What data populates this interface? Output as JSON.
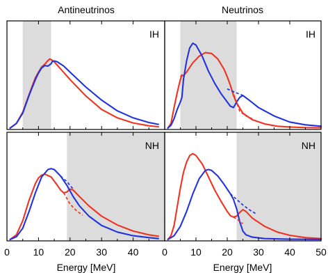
{
  "colors": {
    "red": "#ee3322",
    "blue": "#2233dd",
    "shade": "#dcdcdc"
  },
  "columns": [
    {
      "title": "Antineutrinos"
    },
    {
      "title": "Neutrinos"
    }
  ],
  "xlabel": "Energy [MeV]",
  "chart_data": [
    {
      "type": "line",
      "column": "Antineutrinos",
      "tag": "IH",
      "xlim": [
        0,
        50
      ],
      "shaded": [
        5,
        14
      ],
      "series": [
        {
          "color": "red",
          "points": [
            [
              1,
              0.0
            ],
            [
              3,
              0.05
            ],
            [
              5,
              0.17
            ],
            [
              7,
              0.36
            ],
            [
              9,
              0.54
            ],
            [
              10,
              0.6
            ],
            [
              11,
              0.655
            ],
            [
              11.5,
              0.67
            ],
            [
              12,
              0.685
            ],
            [
              12.5,
              0.705
            ],
            [
              13,
              0.725
            ],
            [
              13.6,
              0.74
            ],
            [
              14,
              0.735
            ],
            [
              15,
              0.71
            ],
            [
              17,
              0.635
            ],
            [
              20,
              0.52
            ],
            [
              25,
              0.345
            ],
            [
              30,
              0.2
            ],
            [
              35,
              0.11
            ],
            [
              40,
              0.055
            ],
            [
              45,
              0.025
            ],
            [
              48,
              0.015
            ]
          ]
        },
        {
          "color": "blue",
          "points": [
            [
              1,
              0.0
            ],
            [
              3,
              0.05
            ],
            [
              5,
              0.16
            ],
            [
              7,
              0.35
            ],
            [
              9,
              0.52
            ],
            [
              10,
              0.59
            ],
            [
              11,
              0.645
            ],
            [
              12,
              0.67
            ],
            [
              13,
              0.665
            ],
            [
              14,
              0.69
            ],
            [
              14.4,
              0.715
            ],
            [
              15,
              0.72
            ],
            [
              16,
              0.71
            ],
            [
              18,
              0.665
            ],
            [
              20,
              0.6
            ],
            [
              25,
              0.44
            ],
            [
              30,
              0.3
            ],
            [
              35,
              0.185
            ],
            [
              40,
              0.11
            ],
            [
              45,
              0.06
            ],
            [
              48,
              0.04
            ]
          ]
        }
      ],
      "dashed": [
        {
          "color": "red",
          "points": [
            [
              12,
              0.685
            ],
            [
              13.6,
              0.745
            ]
          ]
        }
      ]
    },
    {
      "type": "line",
      "column": "Neutrinos",
      "tag": "IH",
      "xlim": [
        0,
        50
      ],
      "shaded": [
        5,
        23
      ],
      "series": [
        {
          "color": "red",
          "points": [
            [
              1,
              0.0
            ],
            [
              2,
              0.05
            ],
            [
              3,
              0.22
            ],
            [
              4,
              0.38
            ],
            [
              5,
              0.52
            ],
            [
              5.5,
              0.57
            ],
            [
              6,
              0.56
            ],
            [
              7,
              0.6
            ],
            [
              9,
              0.7
            ],
            [
              11,
              0.77
            ],
            [
              13,
              0.81
            ],
            [
              15,
              0.8
            ],
            [
              17,
              0.74
            ],
            [
              19,
              0.63
            ],
            [
              20,
              0.55
            ],
            [
              21,
              0.46
            ],
            [
              22,
              0.35
            ],
            [
              23,
              0.27
            ],
            [
              25,
              0.16
            ],
            [
              28,
              0.09
            ],
            [
              32,
              0.045
            ],
            [
              36,
              0.02
            ],
            [
              40,
              0.012
            ],
            [
              45,
              0.005
            ],
            [
              50,
              0.003
            ]
          ]
        },
        {
          "color": "blue",
          "points": [
            [
              1,
              0.0
            ],
            [
              2,
              0.03
            ],
            [
              3,
              0.1
            ],
            [
              4,
              0.2
            ],
            [
              5,
              0.28
            ],
            [
              5.5,
              0.33
            ],
            [
              6,
              0.52
            ],
            [
              7,
              0.72
            ],
            [
              8,
              0.86
            ],
            [
              9,
              0.91
            ],
            [
              10,
              0.89
            ],
            [
              12,
              0.77
            ],
            [
              14,
              0.61
            ],
            [
              16,
              0.48
            ],
            [
              18,
              0.37
            ],
            [
              20,
              0.28
            ],
            [
              21,
              0.235
            ],
            [
              22,
              0.22
            ],
            [
              23,
              0.28
            ],
            [
              24,
              0.33
            ],
            [
              25,
              0.35
            ],
            [
              27,
              0.3
            ],
            [
              30,
              0.22
            ],
            [
              35,
              0.13
            ],
            [
              40,
              0.065
            ],
            [
              45,
              0.035
            ],
            [
              50,
              0.02
            ]
          ]
        }
      ],
      "dashed": [
        {
          "color": "red",
          "points": [
            [
              5,
              0.55
            ],
            [
              5.5,
              0.57
            ]
          ]
        },
        {
          "color": "red",
          "points": [
            [
              20,
              0.55
            ],
            [
              22,
              0.37
            ],
            [
              24,
              0.18
            ],
            [
              26,
              0.13
            ],
            [
              28,
              0.1
            ]
          ]
        },
        {
          "color": "blue",
          "points": [
            [
              20,
              0.42
            ],
            [
              22,
              0.39
            ],
            [
              25,
              0.35
            ]
          ]
        }
      ]
    },
    {
      "type": "line",
      "column": "Antineutrinos",
      "tag": "NH",
      "xlim": [
        0,
        50
      ],
      "shaded": [
        19,
        50
      ],
      "series": [
        {
          "color": "red",
          "points": [
            [
              1,
              0.0
            ],
            [
              3,
              0.05
            ],
            [
              5,
              0.2
            ],
            [
              7,
              0.42
            ],
            [
              9,
              0.6
            ],
            [
              10,
              0.66
            ],
            [
              11,
              0.69
            ],
            [
              12,
              0.7
            ],
            [
              14,
              0.67
            ],
            [
              16,
              0.58
            ],
            [
              17,
              0.53
            ],
            [
              18,
              0.5
            ],
            [
              19,
              0.51
            ],
            [
              20,
              0.54
            ],
            [
              21,
              0.53
            ],
            [
              23,
              0.46
            ],
            [
              26,
              0.36
            ],
            [
              30,
              0.25
            ],
            [
              35,
              0.155
            ],
            [
              40,
              0.09
            ],
            [
              45,
              0.05
            ],
            [
              48,
              0.035
            ]
          ]
        },
        {
          "color": "blue",
          "points": [
            [
              1,
              0.0
            ],
            [
              3,
              0.03
            ],
            [
              5,
              0.12
            ],
            [
              7,
              0.3
            ],
            [
              9,
              0.5
            ],
            [
              11,
              0.67
            ],
            [
              13,
              0.75
            ],
            [
              14,
              0.76
            ],
            [
              15,
              0.75
            ],
            [
              17,
              0.68
            ],
            [
              19,
              0.58
            ],
            [
              21,
              0.46
            ],
            [
              23,
              0.36
            ],
            [
              26,
              0.25
            ],
            [
              30,
              0.15
            ],
            [
              35,
              0.08
            ],
            [
              40,
              0.04
            ],
            [
              45,
              0.02
            ],
            [
              48,
              0.01
            ]
          ]
        }
      ],
      "dashed": [
        {
          "color": "red",
          "points": [
            [
              18,
              0.5
            ],
            [
              20,
              0.38
            ],
            [
              22,
              0.31
            ],
            [
              24,
              0.26
            ]
          ]
        },
        {
          "color": "blue",
          "points": [
            [
              17,
              0.68
            ],
            [
              19,
              0.62
            ],
            [
              21,
              0.54
            ]
          ]
        }
      ]
    },
    {
      "type": "line",
      "column": "Neutrinos",
      "tag": "NH",
      "xlim": [
        0,
        50
      ],
      "shaded": [
        23,
        50
      ],
      "series": [
        {
          "color": "red",
          "points": [
            [
              1,
              0.0
            ],
            [
              2,
              0.04
            ],
            [
              3,
              0.15
            ],
            [
              4,
              0.35
            ],
            [
              5,
              0.55
            ],
            [
              6,
              0.72
            ],
            [
              7,
              0.83
            ],
            [
              8,
              0.9
            ],
            [
              9,
              0.92
            ],
            [
              10,
              0.9
            ],
            [
              12,
              0.81
            ],
            [
              14,
              0.67
            ],
            [
              16,
              0.53
            ],
            [
              18,
              0.41
            ],
            [
              20,
              0.3
            ],
            [
              21,
              0.255
            ],
            [
              22,
              0.24
            ],
            [
              23,
              0.25
            ],
            [
              24,
              0.29
            ],
            [
              25,
              0.32
            ],
            [
              26,
              0.3
            ],
            [
              28,
              0.23
            ],
            [
              32,
              0.14
            ],
            [
              36,
              0.08
            ],
            [
              40,
              0.045
            ],
            [
              45,
              0.02
            ],
            [
              50,
              0.01
            ]
          ]
        },
        {
          "color": "blue",
          "points": [
            [
              1,
              0.0
            ],
            [
              3,
              0.04
            ],
            [
              5,
              0.14
            ],
            [
              7,
              0.3
            ],
            [
              9,
              0.49
            ],
            [
              11,
              0.65
            ],
            [
              13,
              0.74
            ],
            [
              14,
              0.75
            ],
            [
              15,
              0.74
            ],
            [
              17,
              0.68
            ],
            [
              19,
              0.59
            ],
            [
              21,
              0.49
            ],
            [
              22,
              0.43
            ],
            [
              23,
              0.33
            ],
            [
              24,
              0.19
            ],
            [
              25,
              0.09
            ],
            [
              26,
              0.05
            ],
            [
              28,
              0.025
            ],
            [
              32,
              0.01
            ],
            [
              40,
              0.003
            ],
            [
              50,
              0.001
            ]
          ]
        }
      ],
      "dashed": [
        {
          "color": "red",
          "points": [
            [
              22,
              0.24
            ],
            [
              23,
              0.22
            ],
            [
              25,
              0.17
            ]
          ]
        },
        {
          "color": "blue",
          "points": [
            [
              21,
              0.49
            ],
            [
              23,
              0.43
            ],
            [
              25,
              0.37
            ],
            [
              27,
              0.32
            ],
            [
              29,
              0.28
            ]
          ]
        }
      ]
    }
  ],
  "xticks": [
    "0",
    "10",
    "20",
    "30",
    "40"
  ],
  "xticks_right": [
    "0",
    "10",
    "20",
    "30",
    "40",
    "50"
  ]
}
